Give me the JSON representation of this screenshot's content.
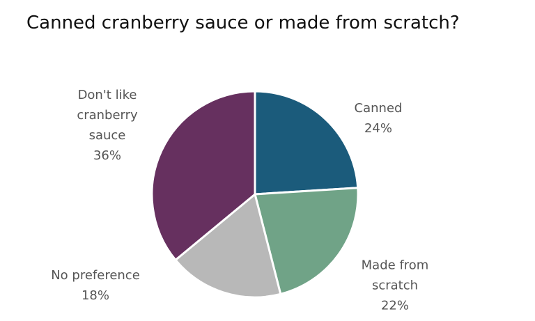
{
  "chart_data": {
    "type": "pie",
    "title": "Canned cranberry sauce or made from scratch?",
    "categories": [
      "Canned",
      "Made from scratch",
      "No preference",
      "Don't like cranberry sauce"
    ],
    "values": [
      24,
      22,
      18,
      36
    ],
    "value_labels": [
      "24%",
      "22%",
      "18%",
      "36%"
    ],
    "colors": [
      "#1b5b7b",
      "#70a387",
      "#b8b8b8",
      "#66305f"
    ]
  }
}
